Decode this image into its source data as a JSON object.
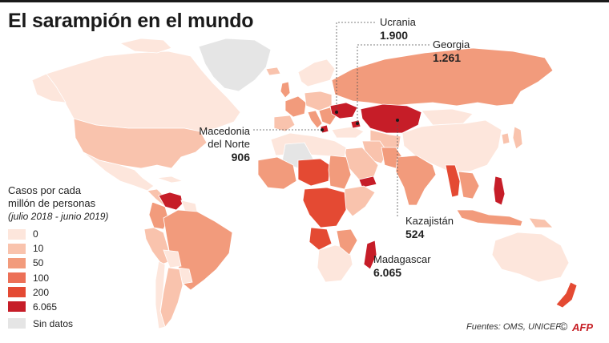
{
  "title": "El sarampión en el mundo",
  "legend": {
    "title_line1": "Casos por cada",
    "title_line2": "millón de personas",
    "subtitle": "(julio 2018 - junio 2019)",
    "items": [
      {
        "label": "0",
        "color": "#fde6dc"
      },
      {
        "label": "10",
        "color": "#f9c3ad"
      },
      {
        "label": "50",
        "color": "#f29b7c"
      },
      {
        "label": "100",
        "color": "#ec7057"
      },
      {
        "label": "200",
        "color": "#e44a33"
      },
      {
        "label": "6.065",
        "color": "#c61d28"
      },
      {
        "label": "Sin datos",
        "color": "#e5e5e5"
      }
    ]
  },
  "callouts": [
    {
      "name": "Ucrania",
      "value": "1.900"
    },
    {
      "name": "Georgia",
      "value": "1.261"
    },
    {
      "name_line1": "Macedonia",
      "name_line2": "del Norte",
      "value": "906"
    },
    {
      "name": "Kazajistán",
      "value": "524"
    },
    {
      "name": "Madagascar",
      "value": "6.065"
    }
  ],
  "source": "Fuentes: OMS, UNICEF",
  "copyright": "©",
  "agency": "AFP"
}
